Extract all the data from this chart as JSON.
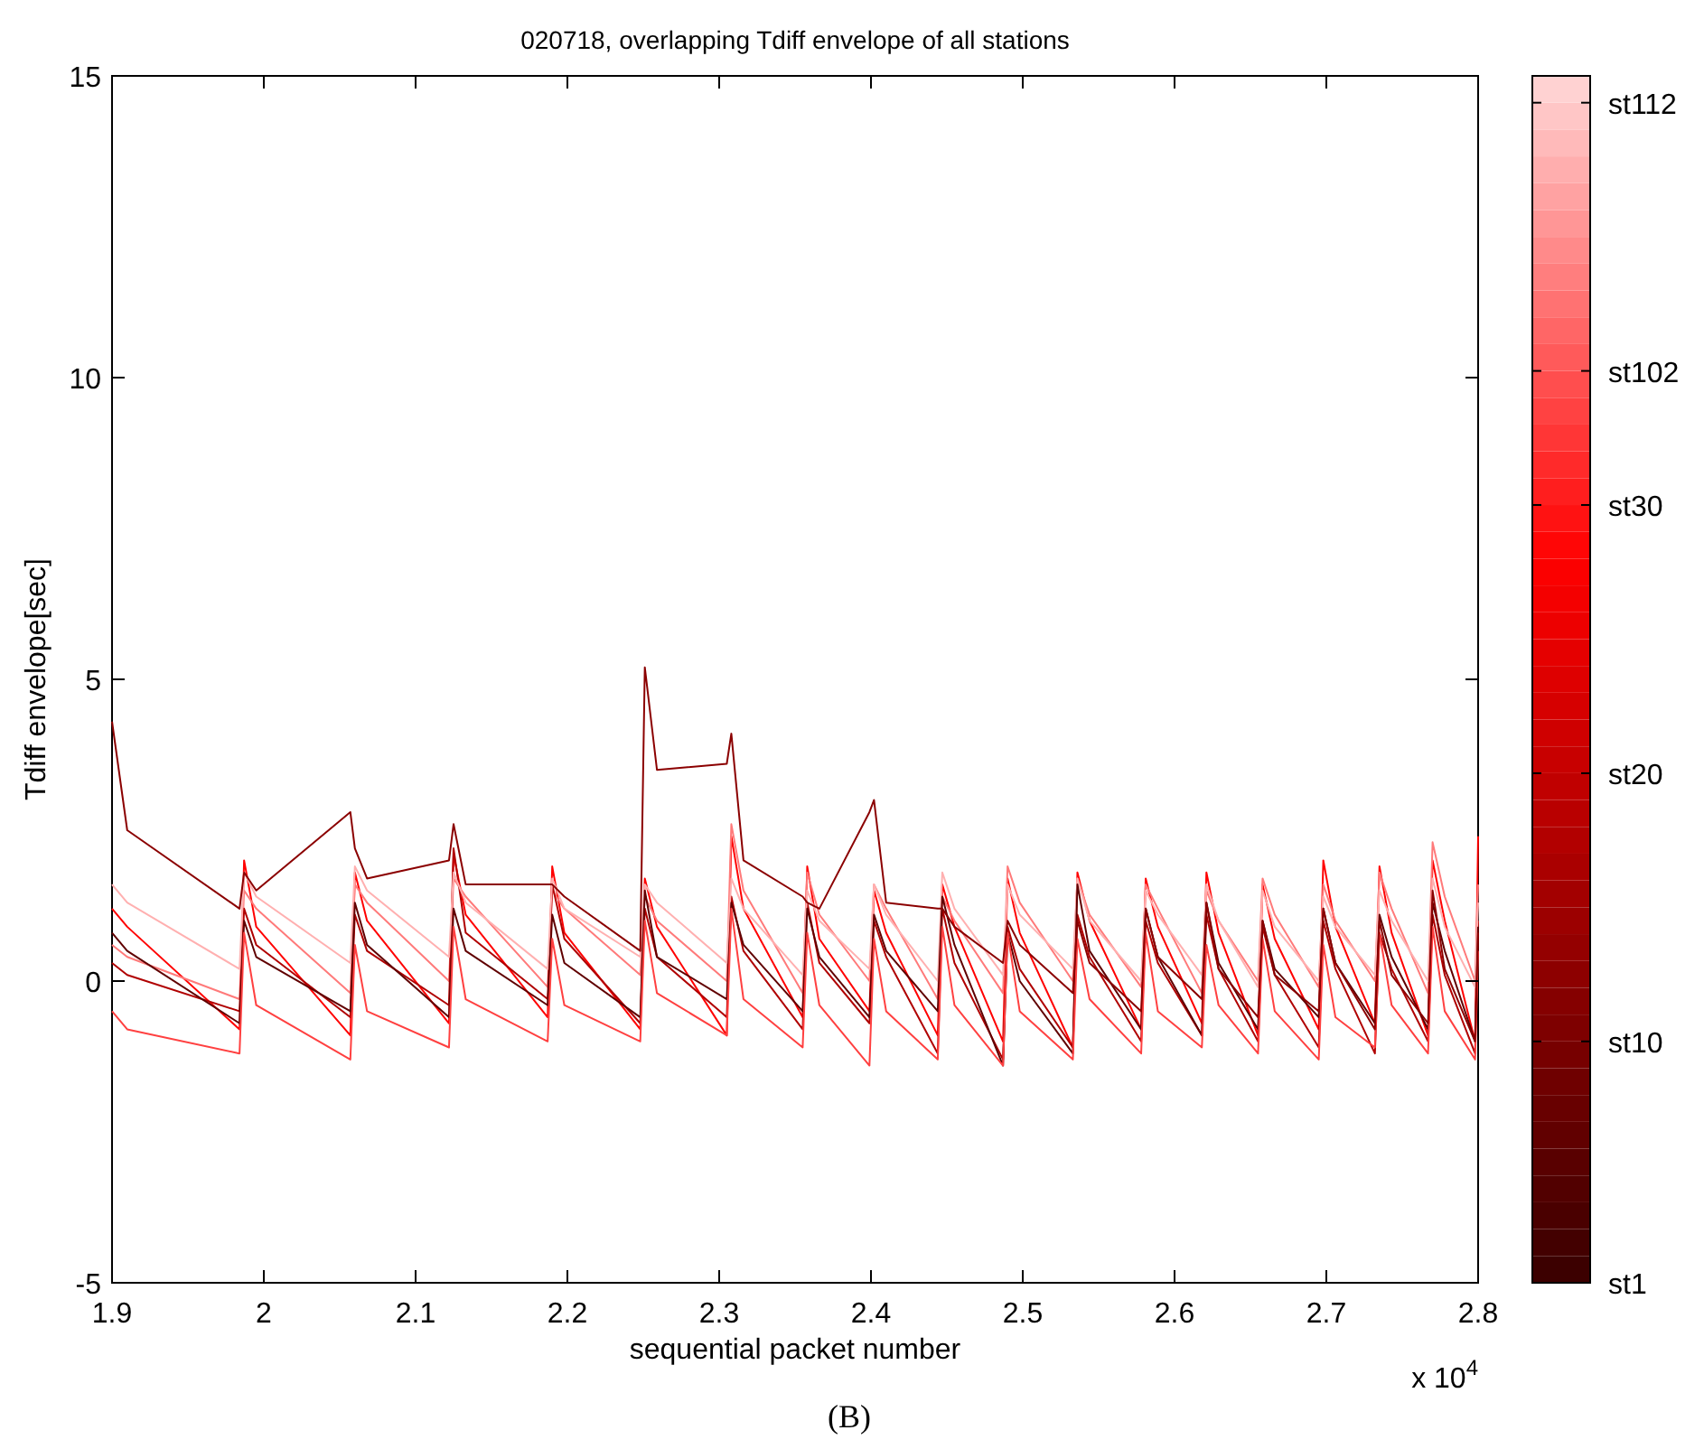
{
  "chart_data": {
    "type": "line",
    "title": "020718, overlapping Tdiff envelope of all stations",
    "xlabel": "sequential packet number",
    "ylabel": "Tdiff envelope[sec]",
    "annotations": [
      "x 10$^{4}$",
      "(B)"
    ],
    "xlim": [
      1.9,
      2.8
    ],
    "xticks": [
      1.9,
      2,
      2.1,
      2.2,
      2.3,
      2.4,
      2.5,
      2.6,
      2.7,
      2.8
    ],
    "ylim": [
      -5,
      15
    ],
    "yticks": [
      -5,
      0,
      5,
      10,
      15
    ],
    "grid": false,
    "clim": [
      1,
      46
    ],
    "cticks": [
      {
        "value": 1,
        "label": "st1"
      },
      {
        "value": 10,
        "label": "st10"
      },
      {
        "value": 20,
        "label": "st20"
      },
      {
        "value": 30,
        "label": "st30"
      },
      {
        "value": 35,
        "label": "st102"
      },
      {
        "value": 45,
        "label": "st112"
      }
    ],
    "x": [
      1.9,
      1.91,
      1.984,
      1.987,
      1.995,
      2.057,
      2.06,
      2.068,
      2.122,
      2.125,
      2.133,
      2.187,
      2.19,
      2.198,
      2.248,
      2.251,
      2.259,
      2.305,
      2.308,
      2.316,
      2.355,
      2.358,
      2.366,
      2.399,
      2.402,
      2.41,
      2.444,
      2.447,
      2.455,
      2.487,
      2.49,
      2.498,
      2.533,
      2.536,
      2.544,
      2.578,
      2.581,
      2.589,
      2.618,
      2.621,
      2.629,
      2.655,
      2.658,
      2.666,
      2.695,
      2.698,
      2.706,
      2.732,
      2.735,
      2.743,
      2.767,
      2.77,
      2.778,
      2.798,
      2.8
    ],
    "series": [
      {
        "color": "#ff0000",
        "values": [
          1.2,
          0.9,
          -0.8,
          2.0,
          0.9,
          -0.9,
          1.8,
          1.0,
          -0.7,
          2.1,
          1.1,
          -0.6,
          1.9,
          0.8,
          -0.8,
          1.7,
          0.9,
          -0.9,
          2.4,
          1.2,
          -0.6,
          1.9,
          0.7,
          -0.5,
          1.5,
          0.8,
          -0.9,
          1.6,
          0.9,
          -1.0,
          1.7,
          0.8,
          -1.1,
          1.8,
          1.0,
          -0.8,
          1.7,
          0.9,
          -0.7,
          1.8,
          0.8,
          -0.9,
          1.6,
          0.7,
          -0.8,
          2.0,
          0.9,
          -0.7,
          1.9,
          0.8,
          -0.9,
          2.0,
          1.0,
          -1.0,
          2.4
        ]
      },
      {
        "color": "#ff7a7a",
        "values": [
          0.6,
          0.4,
          -0.3,
          1.5,
          1.2,
          -0.2,
          1.6,
          1.3,
          0.0,
          1.7,
          1.4,
          -0.1,
          1.5,
          1.2,
          0.1,
          1.4,
          1.0,
          0.0,
          2.6,
          1.5,
          -0.2,
          1.8,
          1.1,
          0.0,
          1.6,
          1.2,
          -0.3,
          1.4,
          1.0,
          -0.2,
          1.9,
          1.3,
          0.0,
          1.7,
          1.1,
          -0.1,
          1.6,
          1.2,
          -0.2,
          1.5,
          1.0,
          0.0,
          1.7,
          1.1,
          -0.1,
          1.6,
          1.0,
          0.0,
          1.8,
          1.2,
          -0.2,
          2.3,
          1.4,
          0.0,
          1.6
        ]
      },
      {
        "color": "#b00000",
        "values": [
          0.3,
          0.1,
          -0.5,
          1.2,
          0.6,
          -0.6,
          1.1,
          0.5,
          -0.4,
          2.2,
          0.8,
          -0.3,
          1.6,
          0.7,
          -0.7,
          1.2,
          0.4,
          -0.6,
          1.4,
          0.5,
          -0.8,
          1.3,
          0.3,
          -0.7,
          1.0,
          0.4,
          -1.2,
          1.2,
          0.3,
          -1.3,
          0.9,
          0.2,
          -1.1,
          1.1,
          0.4,
          -1.0,
          1.0,
          0.3,
          -0.9,
          1.1,
          0.2,
          -1.0,
          0.9,
          0.1,
          -1.1,
          1.0,
          0.2,
          -1.2,
          0.8,
          0.2,
          -1.0,
          1.1,
          0.1,
          -1.2,
          1.0
        ]
      },
      {
        "color": "#ffb0b0",
        "values": [
          1.6,
          1.3,
          0.2,
          1.8,
          1.4,
          0.3,
          1.9,
          1.5,
          0.4,
          1.8,
          1.3,
          0.2,
          1.7,
          1.2,
          0.4,
          1.6,
          1.3,
          0.3,
          1.7,
          1.2,
          0.1,
          1.5,
          1.0,
          0.2,
          1.6,
          1.1,
          0.0,
          1.8,
          1.2,
          0.1,
          1.6,
          1.1,
          0.2,
          1.7,
          1.0,
          0.0,
          1.5,
          1.1,
          0.1,
          1.6,
          1.0,
          -0.1,
          1.5,
          0.9,
          0.0,
          1.4,
          0.9,
          0.1,
          1.5,
          1.0,
          0.0,
          1.7,
          0.9,
          -0.1,
          1.3
        ]
      },
      {
        "color": "#600000",
        "values": [
          0.8,
          0.5,
          -0.7,
          1.0,
          0.4,
          -0.5,
          1.3,
          0.6,
          -0.6,
          1.2,
          0.5,
          -0.4,
          1.1,
          0.3,
          -0.6,
          1.5,
          0.4,
          -0.3,
          1.3,
          0.6,
          -0.5,
          1.2,
          0.4,
          -0.6,
          1.1,
          0.5,
          -0.5,
          1.4,
          0.6,
          -1.4,
          0.8,
          0.0,
          -1.2,
          1.6,
          0.5,
          -0.8,
          1.2,
          0.4,
          -0.9,
          1.3,
          0.3,
          -0.8,
          1.0,
          0.2,
          -0.6,
          1.2,
          0.3,
          -0.7,
          1.1,
          0.4,
          -0.8,
          1.3,
          0.5,
          -1.0,
          0.9
        ]
      },
      {
        "color": "#ff4040",
        "values": [
          -0.5,
          -0.8,
          -1.2,
          0.8,
          -0.4,
          -1.3,
          0.6,
          -0.5,
          -1.1,
          0.9,
          -0.3,
          -1.0,
          0.7,
          -0.4,
          -1.0,
          1.0,
          -0.2,
          -0.9,
          1.2,
          -0.3,
          -1.1,
          0.8,
          -0.4,
          -1.4,
          0.7,
          -0.5,
          -1.3,
          0.9,
          -0.4,
          -1.4,
          0.8,
          -0.5,
          -1.3,
          0.7,
          -0.3,
          -1.2,
          0.8,
          -0.5,
          -1.1,
          0.6,
          -0.4,
          -1.2,
          0.7,
          -0.5,
          -1.3,
          0.6,
          -0.6,
          -1.1,
          0.8,
          -0.4,
          -1.2,
          0.9,
          -0.5,
          -1.3,
          0.5
        ]
      },
      {
        "color": "#8b0000",
        "values": [
          4.3,
          2.5,
          1.2,
          1.8,
          1.5,
          2.8,
          2.2,
          1.7,
          2.0,
          2.6,
          1.6,
          1.6,
          1.6,
          1.4,
          0.5,
          5.2,
          3.5,
          3.6,
          4.1,
          2.0,
          1.4,
          1.3,
          1.2,
          2.8,
          3.0,
          1.3,
          1.2,
          1.2,
          0.9,
          0.3,
          1.0,
          0.6,
          -0.2,
          1.0,
          0.3,
          -0.5,
          1.2,
          0.4,
          -0.3,
          1.3,
          0.2,
          -0.6,
          1.0,
          0.1,
          -0.5,
          1.2,
          0.3,
          -0.8,
          1.0,
          0.1,
          -0.7,
          1.5,
          0.2,
          -1.0,
          0.8
        ]
      }
    ]
  }
}
